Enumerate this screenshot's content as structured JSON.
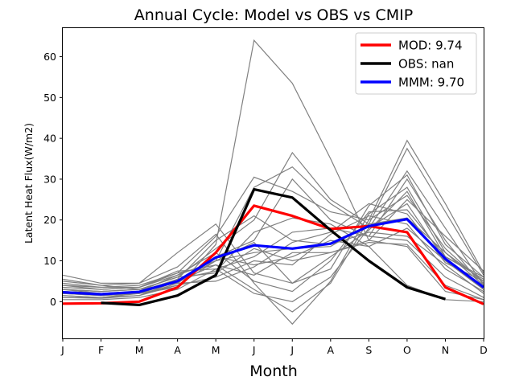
{
  "chart_data": {
    "type": "line",
    "title": "Annual Cycle: Model vs OBS vs CMIP",
    "xlabel": "Month",
    "ylabel": "Latent Heat Flux(W/m2)",
    "categories": [
      "J",
      "F",
      "M",
      "A",
      "M",
      "J",
      "J",
      "A",
      "S",
      "O",
      "N",
      "D"
    ],
    "ylim": [
      -9,
      67
    ],
    "yticks": [
      0,
      10,
      20,
      30,
      40,
      50,
      60
    ],
    "legend_position": "top-right",
    "series": [
      {
        "name": "MOD: 9.74",
        "color": "#ff0000",
        "values": [
          -0.5,
          -0.4,
          0.0,
          3.5,
          12.0,
          23.5,
          21.0,
          17.8,
          18.5,
          17.0,
          3.5,
          -0.6
        ]
      },
      {
        "name": "OBS: nan",
        "color": "#000000",
        "values": [
          null,
          -0.3,
          -0.8,
          1.5,
          6.5,
          27.5,
          25.5,
          17.5,
          10.0,
          3.5,
          0.6,
          null
        ]
      },
      {
        "name": "MMM: 9.70",
        "color": "#0000ff",
        "values": [
          2.3,
          1.8,
          2.4,
          5.0,
          10.8,
          13.8,
          13.0,
          14.2,
          18.5,
          20.2,
          10.5,
          3.5
        ]
      }
    ],
    "cmip_models": [
      [
        2.0,
        1.5,
        2.0,
        3.5,
        14.0,
        64.0,
        53.5,
        35.0,
        15.0,
        13.5,
        2.5,
        0.5
      ],
      [
        4.0,
        3.5,
        4.0,
        7.0,
        16.0,
        30.5,
        27.0,
        22.0,
        20.0,
        39.5,
        24.0,
        7.0
      ],
      [
        3.0,
        2.5,
        3.0,
        6.0,
        13.0,
        20.0,
        36.5,
        25.0,
        19.0,
        37.5,
        22.0,
        6.5
      ],
      [
        1.0,
        0.8,
        1.5,
        4.0,
        10.0,
        28.0,
        33.0,
        24.0,
        18.0,
        32.0,
        18.0,
        4.0
      ],
      [
        2.5,
        2.0,
        2.5,
        5.0,
        11.0,
        15.0,
        30.0,
        20.0,
        16.0,
        30.0,
        15.0,
        3.5
      ],
      [
        5.0,
        4.0,
        4.5,
        12.0,
        19.0,
        7.0,
        4.5,
        8.0,
        23.5,
        31.0,
        14.0,
        6.0
      ],
      [
        6.5,
        4.5,
        4.5,
        8.5,
        16.5,
        4.5,
        -5.5,
        5.0,
        21.5,
        28.0,
        12.0,
        5.0
      ],
      [
        1.5,
        1.0,
        1.5,
        5.0,
        9.0,
        3.0,
        -2.5,
        4.5,
        20.0,
        26.0,
        13.0,
        4.5
      ],
      [
        0.5,
        0.5,
        1.0,
        3.0,
        8.0,
        2.0,
        0.0,
        6.0,
        18.0,
        24.0,
        10.0,
        3.0
      ],
      [
        3.5,
        3.0,
        3.5,
        6.5,
        12.0,
        5.0,
        2.5,
        10.0,
        22.0,
        22.5,
        11.0,
        5.5
      ],
      [
        2.0,
        2.0,
        2.5,
        5.5,
        15.0,
        21.0,
        15.0,
        14.0,
        17.0,
        16.0,
        9.0,
        2.0
      ],
      [
        4.5,
        3.5,
        3.5,
        7.5,
        8.0,
        11.0,
        17.0,
        18.0,
        16.0,
        15.0,
        6.0,
        1.0
      ],
      [
        3.0,
        2.5,
        3.0,
        6.0,
        7.0,
        13.0,
        10.0,
        12.0,
        14.5,
        14.0,
        4.0,
        0.5
      ],
      [
        1.0,
        1.0,
        1.5,
        4.5,
        11.0,
        9.0,
        11.0,
        15.0,
        13.5,
        4.0,
        0.5,
        0.0
      ],
      [
        2.5,
        2.0,
        2.5,
        6.5,
        10.0,
        12.0,
        13.0,
        13.5,
        19.0,
        20.5,
        12.0,
        4.0
      ],
      [
        4.0,
        3.0,
        3.5,
        7.0,
        9.0,
        6.5,
        12.0,
        12.0,
        15.0,
        25.0,
        16.0,
        7.5
      ],
      [
        1.5,
        1.0,
        2.0,
        4.0,
        6.0,
        10.0,
        9.0,
        16.5,
        21.0,
        19.0,
        8.0,
        2.5
      ],
      [
        3.0,
        2.0,
        2.0,
        5.0,
        10.0,
        14.5,
        4.5,
        11.0,
        17.5,
        27.0,
        11.0,
        6.0
      ],
      [
        2.0,
        1.5,
        2.0,
        5.5,
        7.5,
        17.0,
        20.5,
        19.0,
        13.5,
        18.0,
        10.0,
        3.0
      ],
      [
        5.5,
        4.0,
        3.0,
        4.5,
        5.0,
        8.5,
        14.5,
        17.0,
        24.0,
        21.5,
        9.5,
        5.0
      ]
    ]
  }
}
